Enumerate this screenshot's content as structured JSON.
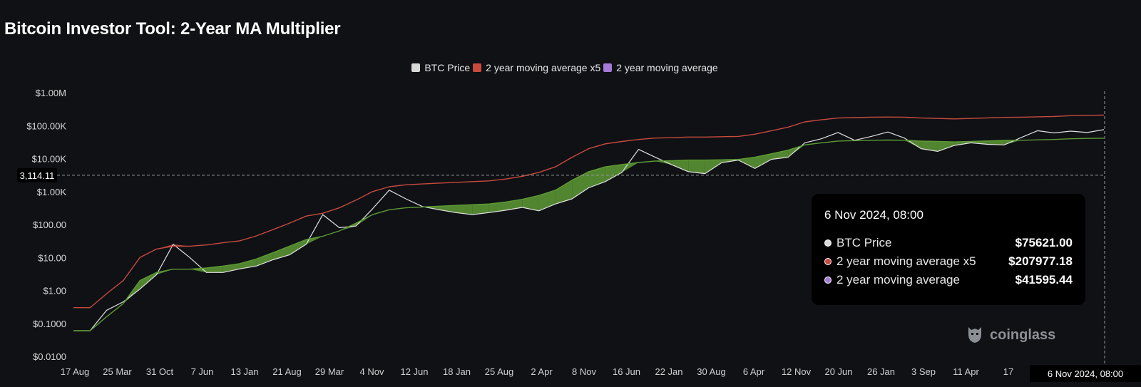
{
  "page_title": "Bitcoin Investor Tool: 2-Year MA Multiplier",
  "colors": {
    "background": "#0f1115",
    "btc_price": "#e0e0e0",
    "ma_x5": "#c94a3f",
    "ma": "#5e9a35",
    "ma_legend": "#a57ad8",
    "fill_over": "#d05040",
    "fill_under": "#5e9a35"
  },
  "tooltip": {
    "title": "6 Nov 2024, 08:00",
    "rows": [
      {
        "label": "BTC Price",
        "value": "$75621.00",
        "dot": "#d8d8d8"
      },
      {
        "label": "2 year moving average x5",
        "value": "$207977.18",
        "dot": "#c94a3f"
      },
      {
        "label": "2 year moving average",
        "value": "$41595.44",
        "dot": "#a57ad8"
      }
    ]
  },
  "watermark": {
    "text": "coinglass",
    "icon": "coinglass-logo-icon"
  },
  "chart_data": {
    "type": "line",
    "title": "Bitcoin Investor Tool: 2-Year MA Multiplier",
    "y_scale": "log",
    "ylim": [
      0.01,
      1000000
    ],
    "y_ticks": [
      {
        "value": 1000000,
        "label": "$1.00M"
      },
      {
        "value": 100000,
        "label": "$100.00K"
      },
      {
        "value": 10000,
        "label": "$10.00K"
      },
      {
        "value": 1000,
        "label": "$1.00K"
      },
      {
        "value": 100,
        "label": "$100.00"
      },
      {
        "value": 10,
        "label": "$10.00"
      },
      {
        "value": 1,
        "label": "$1.00"
      },
      {
        "value": 0.1,
        "label": "$0.1000"
      },
      {
        "value": 0.01,
        "label": "$0.0100"
      }
    ],
    "x_ticks": [
      "17 Aug",
      "25 Mar",
      "31 Oct",
      "7 Jun",
      "13 Jan",
      "21 Aug",
      "29 Mar",
      "4 Nov",
      "12 Jun",
      "18 Jan",
      "25 Aug",
      "2 Apr",
      "8 Nov",
      "16 Jun",
      "22 Jan",
      "30 Aug",
      "6 Apr",
      "12 Nov",
      "20 Jun",
      "26 Jan",
      "3 Sep",
      "11 Apr",
      "17"
    ],
    "crosshair": {
      "x_label": "6 Nov 2024, 08:00",
      "y_label": "3,114.11",
      "y_value": 3114.11
    },
    "legend_position": "top-center",
    "grid": false,
    "series": [
      {
        "name": "BTC Price",
        "values": [
          0.06,
          0.06,
          0.25,
          0.45,
          1.1,
          3.0,
          25,
          10,
          3.5,
          3.5,
          4.5,
          5.5,
          8.5,
          12,
          25,
          200,
          80,
          90,
          300,
          1100,
          600,
          350,
          280,
          230,
          200,
          230,
          270,
          330,
          260,
          420,
          600,
          1300,
          2000,
          3800,
          19000,
          11000,
          6500,
          4000,
          3500,
          7500,
          9000,
          5000,
          9500,
          11000,
          30000,
          40000,
          62000,
          36000,
          47000,
          64000,
          42000,
          20000,
          16500,
          25000,
          30000,
          27000,
          26000,
          43000,
          70000,
          60000,
          68000,
          62000,
          75621
        ]
      },
      {
        "name": "2 year moving average x5",
        "values": [
          0.3,
          0.3,
          0.8,
          2.0,
          10,
          18,
          22,
          22,
          24,
          28,
          32,
          45,
          70,
          110,
          180,
          220,
          320,
          550,
          1000,
          1400,
          1600,
          1700,
          1800,
          1900,
          2000,
          2100,
          2400,
          2900,
          3800,
          5600,
          11000,
          20000,
          28000,
          33000,
          38000,
          42000,
          43000,
          45000,
          45000,
          46000,
          47000,
          55000,
          70000,
          90000,
          130000,
          150000,
          170000,
          175000,
          180000,
          182000,
          180000,
          170000,
          165000,
          160000,
          165000,
          172000,
          178000,
          180000,
          185000,
          190000,
          200000,
          205000,
          207977
        ]
      },
      {
        "name": "2 year moving average",
        "values": [
          0.06,
          0.06,
          0.16,
          0.4,
          2.0,
          3.5,
          4.4,
          4.4,
          4.8,
          5.5,
          6.5,
          9,
          14,
          22,
          35,
          44,
          64,
          110,
          200,
          280,
          320,
          340,
          360,
          380,
          400,
          420,
          480,
          580,
          760,
          1100,
          2200,
          4000,
          5600,
          6600,
          7600,
          8400,
          8600,
          9000,
          9000,
          9200,
          9400,
          11000,
          14000,
          18000,
          26000,
          30000,
          34000,
          35000,
          36000,
          36400,
          36000,
          34000,
          33000,
          32000,
          33000,
          34400,
          35600,
          36000,
          37000,
          38000,
          40000,
          41000,
          41595
        ]
      }
    ]
  }
}
